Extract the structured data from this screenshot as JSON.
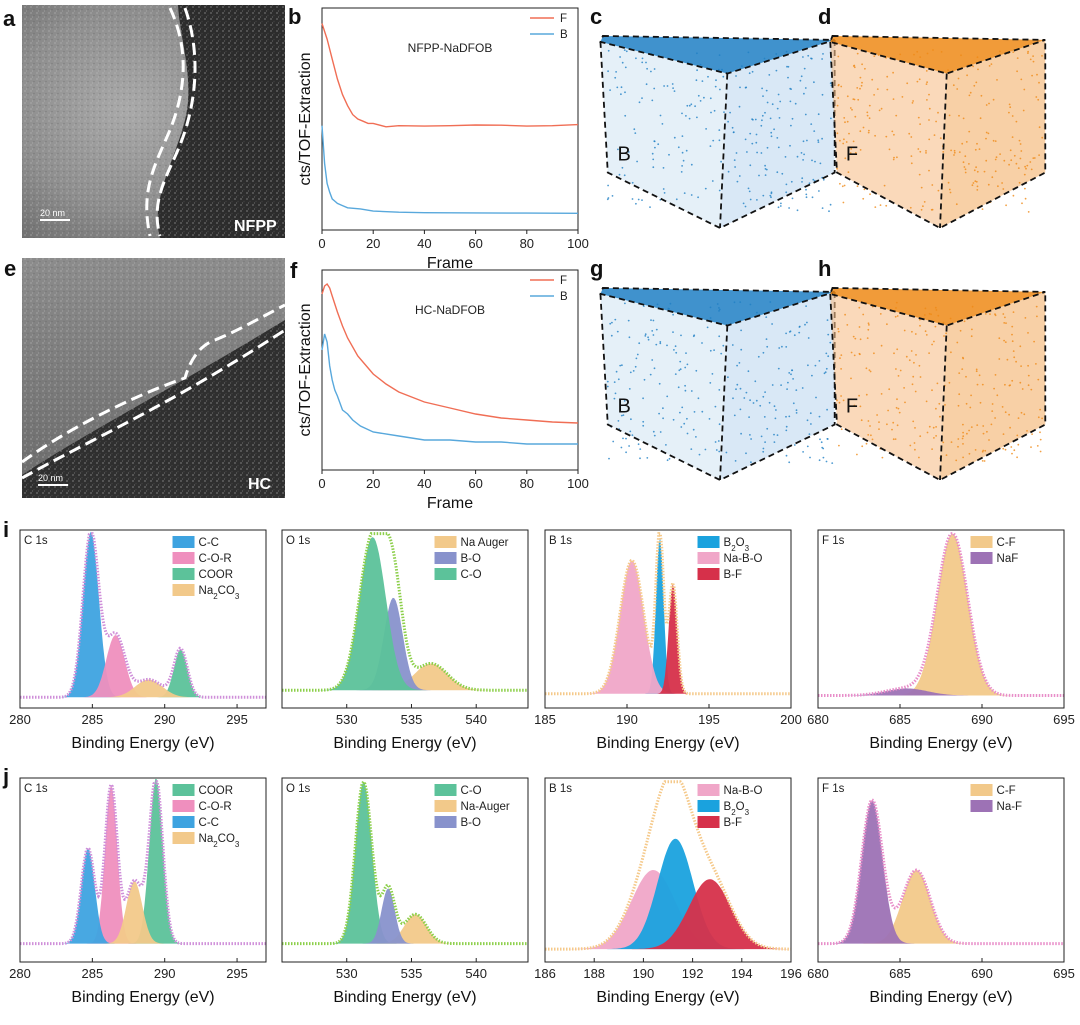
{
  "panels": {
    "a": "a",
    "b": "b",
    "c": "c",
    "d": "d",
    "e": "e",
    "f": "f",
    "g": "g",
    "h": "h",
    "i": "i",
    "j": "j"
  },
  "tem": {
    "a": {
      "label": "NFPP",
      "scale": "20 nm"
    },
    "e": {
      "label": "HC",
      "scale": "20 nm"
    }
  },
  "cubes": {
    "c": {
      "element": "B",
      "color": "#1f7fc4"
    },
    "d": {
      "element": "F",
      "color": "#ef8a16"
    },
    "g": {
      "element": "B",
      "color": "#1f7fc4"
    },
    "h": {
      "element": "F",
      "color": "#ef8a16"
    }
  },
  "colors": {
    "F_line": "#f06e55",
    "B_line": "#58a8dc",
    "cc": "#3ea3e0",
    "cor": "#ef8fbe",
    "coor": "#5cc29a",
    "na2co3": "#f2c98a",
    "nauger": "#f2c98a",
    "bo": "#8892cc",
    "co": "#5cc29a",
    "b2o3": "#1aa2de",
    "nabo": "#f0a6c8",
    "bf": "#d6304a",
    "cf": "#f2c98a",
    "naf": "#9d72b5",
    "env_purple": "#cf8fd9",
    "env_green": "#8ccf4a",
    "env_orange": "#f5c98a",
    "env_pink": "#e88ec9"
  },
  "chart_data": [
    {
      "id": "b",
      "type": "line",
      "annotation": "NFPP-NaDFOB",
      "xlabel": "Frame",
      "ylabel": "cts/TOF-Extraction",
      "xlim": [
        0,
        100
      ],
      "xticks": [
        "0",
        "20",
        "40",
        "60",
        "80",
        "100"
      ],
      "series": [
        {
          "name": "F",
          "x": [
            0,
            2,
            4,
            6,
            8,
            10,
            12,
            14,
            16,
            18,
            20,
            25,
            30,
            40,
            50,
            60,
            70,
            80,
            90,
            100
          ],
          "values": [
            0.93,
            0.86,
            0.77,
            0.68,
            0.61,
            0.56,
            0.52,
            0.5,
            0.49,
            0.48,
            0.48,
            0.465,
            0.47,
            0.468,
            0.47,
            0.473,
            0.472,
            0.468,
            0.47,
            0.475
          ]
        },
        {
          "name": "B",
          "x": [
            0,
            1,
            2,
            3,
            4,
            5,
            6,
            8,
            10,
            15,
            20,
            30,
            40,
            60,
            80,
            100
          ],
          "values": [
            0.47,
            0.3,
            0.21,
            0.17,
            0.14,
            0.13,
            0.12,
            0.11,
            0.1,
            0.095,
            0.085,
            0.08,
            0.078,
            0.077,
            0.076,
            0.075
          ]
        }
      ]
    },
    {
      "id": "f",
      "type": "line",
      "annotation": "HC-NaDFOB",
      "xlabel": "Frame",
      "ylabel": "cts/TOF-Extraction",
      "xlim": [
        0,
        100
      ],
      "xticks": [
        "0",
        "20",
        "40",
        "60",
        "80",
        "100"
      ],
      "series": [
        {
          "name": "F",
          "x": [
            0,
            1,
            2,
            3,
            4,
            6,
            8,
            10,
            14,
            18,
            20,
            25,
            30,
            40,
            50,
            60,
            70,
            80,
            90,
            100
          ],
          "values": [
            0.88,
            0.92,
            0.93,
            0.91,
            0.87,
            0.79,
            0.72,
            0.66,
            0.57,
            0.51,
            0.48,
            0.43,
            0.39,
            0.34,
            0.31,
            0.28,
            0.26,
            0.25,
            0.24,
            0.235
          ]
        },
        {
          "name": "B",
          "x": [
            0,
            1,
            2,
            3,
            4,
            5,
            6,
            8,
            10,
            12,
            15,
            20,
            30,
            40,
            50,
            60,
            70,
            80,
            90,
            100
          ],
          "values": [
            0.6,
            0.68,
            0.64,
            0.52,
            0.45,
            0.4,
            0.37,
            0.3,
            0.28,
            0.25,
            0.22,
            0.19,
            0.17,
            0.15,
            0.15,
            0.14,
            0.14,
            0.13,
            0.13,
            0.13
          ]
        }
      ]
    },
    {
      "id": "i1",
      "type": "area",
      "title": "C 1s",
      "xlabel": "Binding Energy (eV)",
      "xlim": [
        280,
        297
      ],
      "xticks": [
        280,
        285,
        290,
        295
      ],
      "baseline": 0.06,
      "envelope": "env_purple",
      "components": [
        {
          "name": "C-C",
          "color": "cc",
          "center": 284.9,
          "fwhm": 1.3,
          "height": 0.93
        },
        {
          "name": "C-O-R",
          "color": "cor",
          "center": 286.6,
          "fwhm": 1.5,
          "height": 0.35
        },
        {
          "name": "COOR",
          "color": "coor",
          "center": 291.1,
          "fwhm": 1.1,
          "height": 0.27
        },
        {
          "name": "Na2CO3",
          "color": "na2co3",
          "center": 288.9,
          "fwhm": 2.2,
          "height": 0.1
        }
      ]
    },
    {
      "id": "i2",
      "type": "area",
      "title": "O 1s",
      "xlabel": "Binding Energy (eV)",
      "xlim": [
        525,
        544
      ],
      "xticks": [
        530,
        535,
        540
      ],
      "baseline": 0.1,
      "envelope": "env_green",
      "components": [
        {
          "name": "Na Auger",
          "color": "nauger",
          "center": 536.5,
          "fwhm": 3.0,
          "height": 0.15
        },
        {
          "name": "B-O",
          "color": "bo",
          "center": 533.6,
          "fwhm": 1.7,
          "height": 0.52
        },
        {
          "name": "C-O",
          "color": "co",
          "center": 532.0,
          "fwhm": 2.4,
          "height": 0.86
        }
      ]
    },
    {
      "id": "i3",
      "type": "area",
      "title": "B 1s",
      "xlabel": "Binding Energy (eV)",
      "xlim": [
        185,
        200
      ],
      "xticks": [
        185,
        190,
        195,
        200
      ],
      "baseline": 0.08,
      "envelope": "env_orange",
      "components": [
        {
          "name": "B2O3",
          "color": "b2o3",
          "center": 192.0,
          "fwhm": 0.55,
          "height": 0.88
        },
        {
          "name": "Na-B-O",
          "color": "nabo",
          "center": 190.3,
          "fwhm": 1.7,
          "height": 0.75
        },
        {
          "name": "B-F",
          "color": "bf",
          "center": 192.8,
          "fwhm": 0.6,
          "height": 0.62
        }
      ]
    },
    {
      "id": "i4",
      "type": "area",
      "title": "F 1s",
      "xlabel": "Binding Energy (eV)",
      "xlim": [
        680,
        695
      ],
      "xticks": [
        680,
        685,
        690,
        695
      ],
      "baseline": 0.07,
      "envelope": "env_pink",
      "components": [
        {
          "name": "C-F",
          "color": "cf",
          "center": 688.2,
          "fwhm": 2.2,
          "height": 0.91
        },
        {
          "name": "NaF",
          "color": "naf",
          "center": 685.4,
          "fwhm": 3.0,
          "height": 0.04
        }
      ]
    },
    {
      "id": "j1",
      "type": "area",
      "title": "C 1s",
      "xlabel": "Binding Energy (eV)",
      "xlim": [
        280,
        297
      ],
      "xticks": [
        280,
        285,
        290,
        295
      ],
      "baseline": 0.1,
      "envelope": "env_purple",
      "components": [
        {
          "name": "COOR",
          "color": "coor",
          "center": 289.4,
          "fwhm": 1.1,
          "height": 0.9
        },
        {
          "name": "C-O-R",
          "color": "cor",
          "center": 286.3,
          "fwhm": 1.0,
          "height": 0.86
        },
        {
          "name": "C-C",
          "color": "cc",
          "center": 284.7,
          "fwhm": 1.1,
          "height": 0.52
        },
        {
          "name": "Na2CO3",
          "color": "na2co3",
          "center": 287.9,
          "fwhm": 1.3,
          "height": 0.34
        }
      ]
    },
    {
      "id": "j2",
      "type": "area",
      "title": "O 1s",
      "xlabel": "Binding Energy (eV)",
      "xlim": [
        525,
        544
      ],
      "xticks": [
        530,
        535,
        540
      ],
      "baseline": 0.1,
      "envelope": "env_green",
      "components": [
        {
          "name": "C-O",
          "color": "co",
          "center": 531.3,
          "fwhm": 1.5,
          "height": 0.88
        },
        {
          "name": "Na-Auger",
          "color": "nauger",
          "center": 535.3,
          "fwhm": 2.0,
          "height": 0.16
        },
        {
          "name": "B-O",
          "color": "bo",
          "center": 533.2,
          "fwhm": 1.2,
          "height": 0.3
        }
      ]
    },
    {
      "id": "j3",
      "type": "area",
      "title": "B 1s",
      "xlabel": "Binding Energy (eV)",
      "xlim": [
        186,
        196
      ],
      "xticks": [
        186,
        188,
        190,
        192,
        194,
        196
      ],
      "baseline": 0.07,
      "envelope": "env_orange",
      "components": [
        {
          "name": "Na-B-O",
          "color": "nabo",
          "center": 190.4,
          "fwhm": 2.1,
          "height": 0.43
        },
        {
          "name": "B2O3",
          "color": "b2o3",
          "center": 191.3,
          "fwhm": 1.7,
          "height": 0.6
        },
        {
          "name": "B-F",
          "color": "bf",
          "center": 192.7,
          "fwhm": 2.0,
          "height": 0.38
        }
      ]
    },
    {
      "id": "j4",
      "type": "area",
      "title": "F 1s",
      "xlabel": "Binding Energy (eV)",
      "xlim": [
        680,
        695
      ],
      "xticks": [
        680,
        685,
        690,
        695
      ],
      "baseline": 0.1,
      "envelope": "env_pink",
      "components": [
        {
          "name": "C-F",
          "color": "cf",
          "center": 686.0,
          "fwhm": 2.0,
          "height": 0.4
        },
        {
          "name": "Na-F",
          "color": "naf",
          "center": 683.3,
          "fwhm": 1.5,
          "height": 0.78
        }
      ]
    }
  ]
}
